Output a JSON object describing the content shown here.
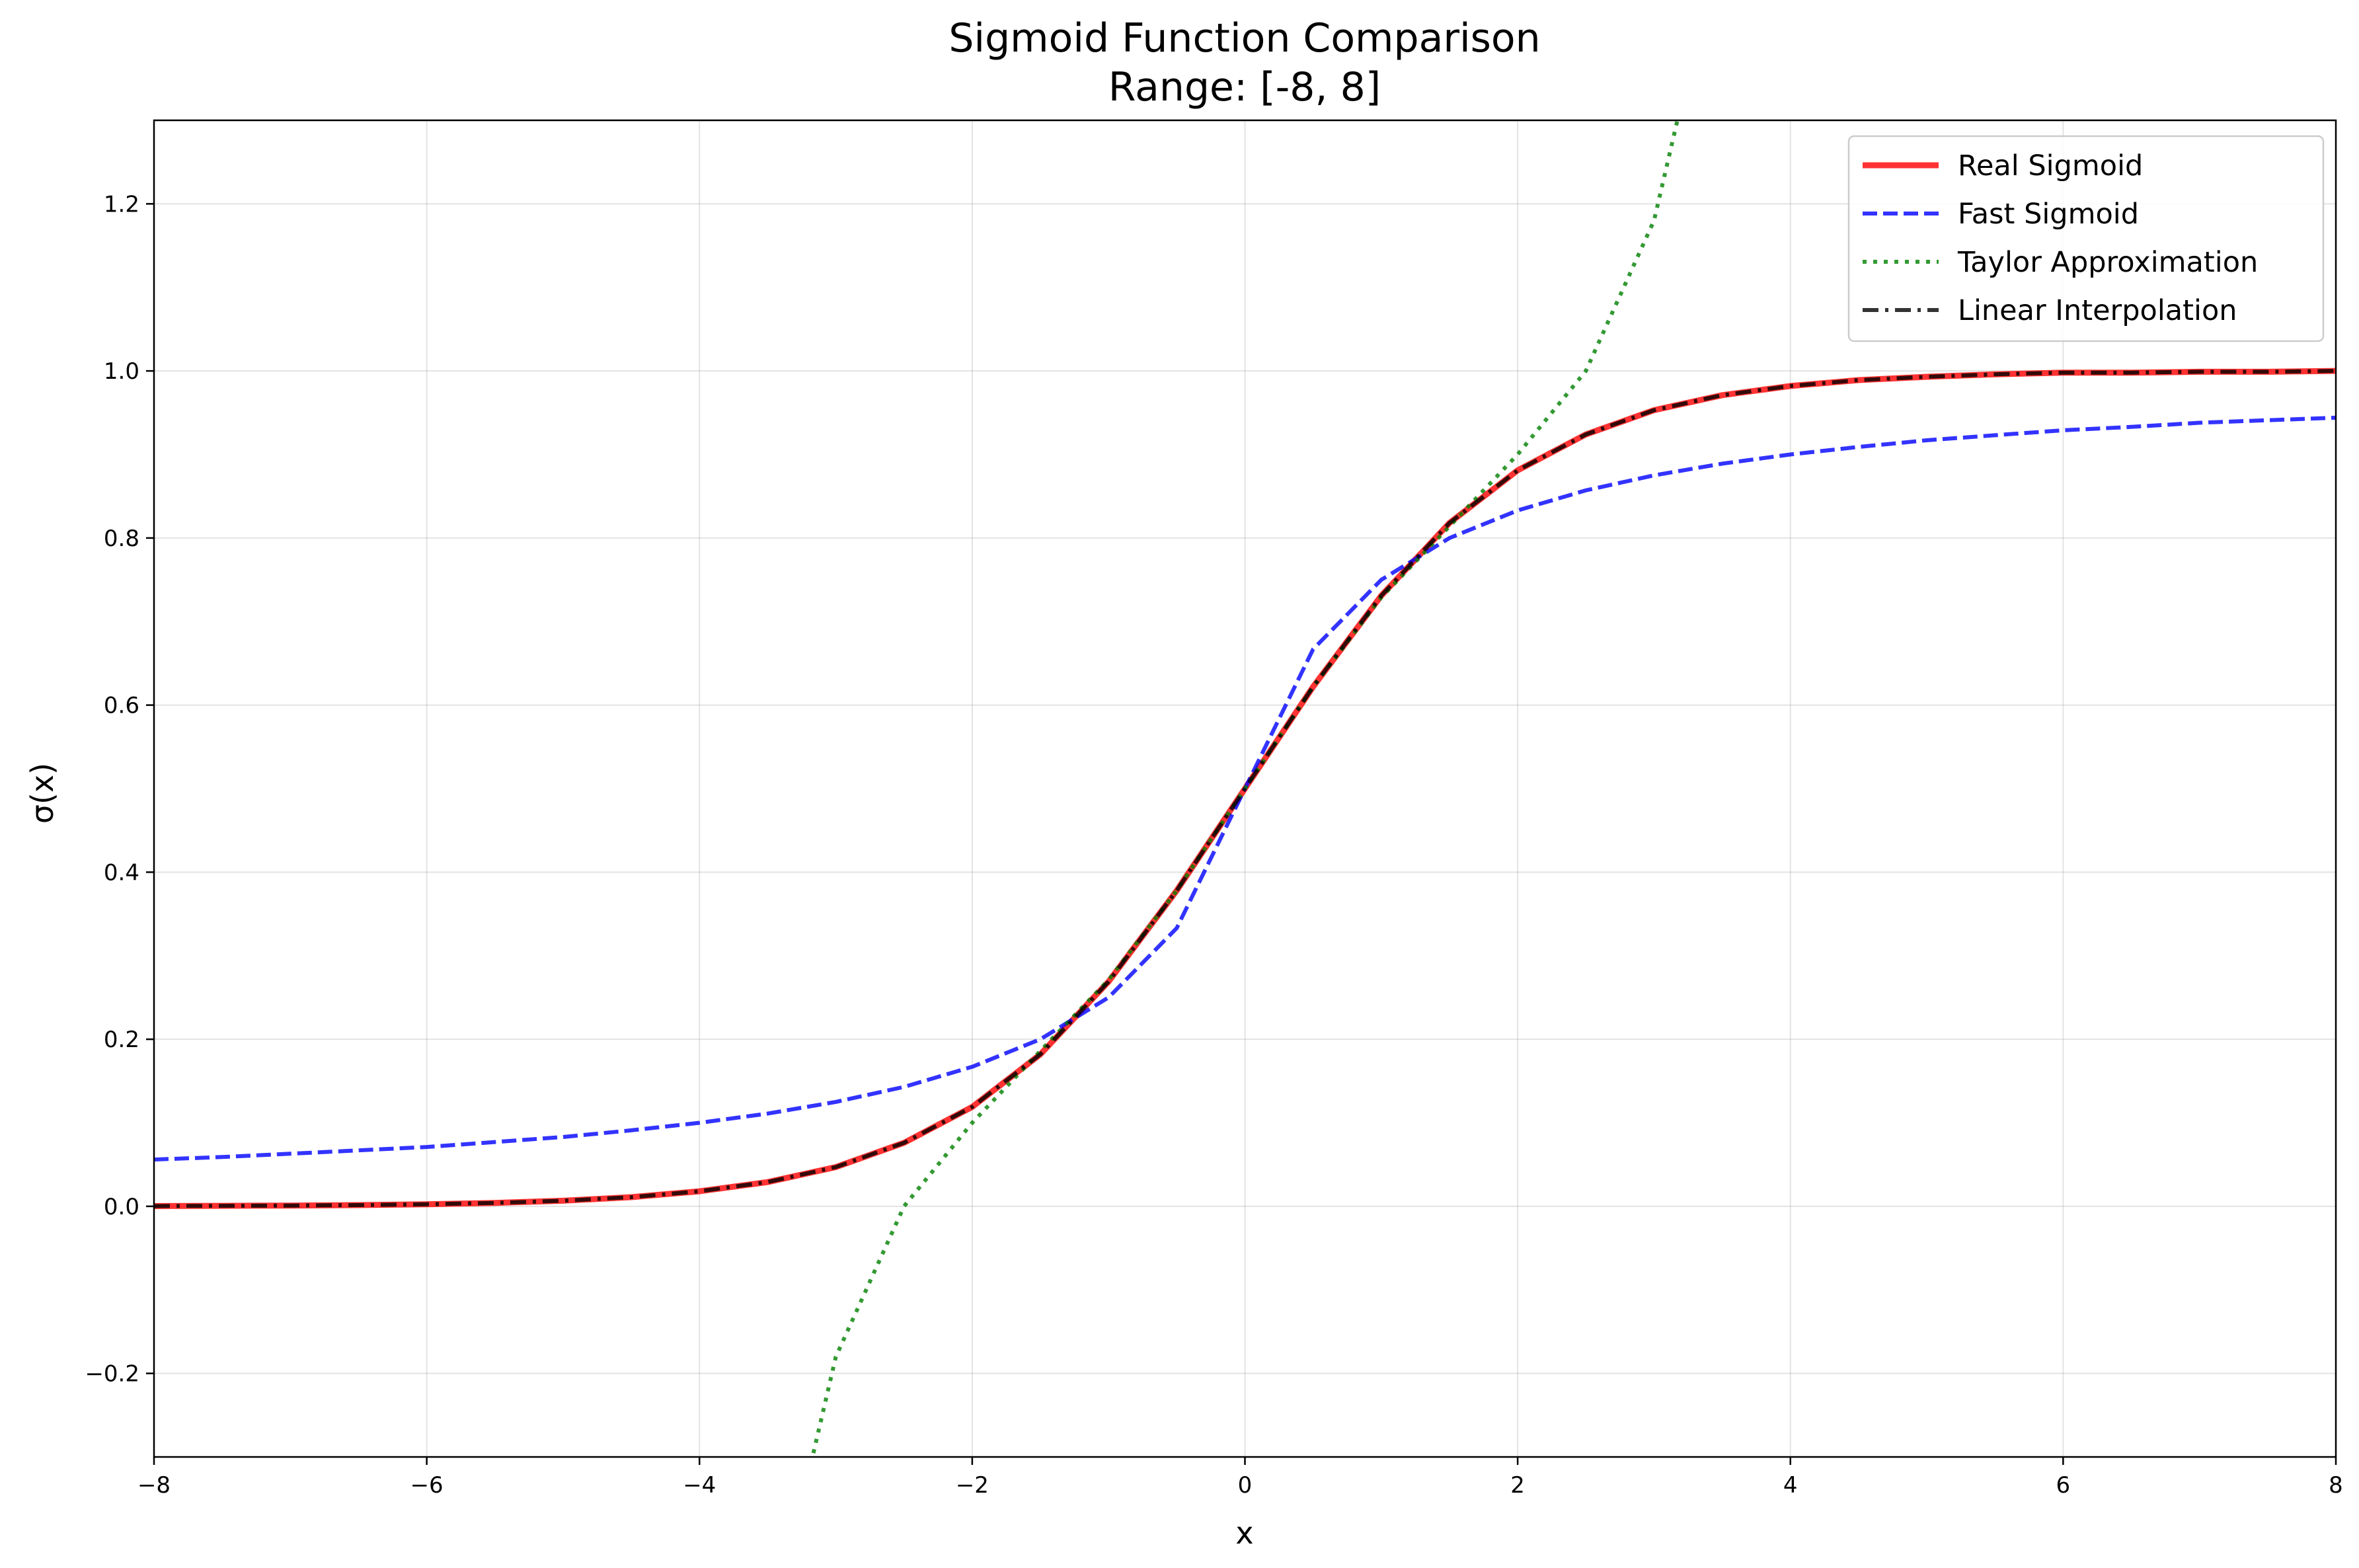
{
  "chart_data": {
    "type": "line",
    "title": "Sigmoid Function Comparison",
    "subtitle": "Range: [-8, 8]",
    "xlabel": "x",
    "ylabel": "σ(x)",
    "xlim": [
      -8,
      8
    ],
    "ylim": [
      -0.3,
      1.3
    ],
    "grid": true,
    "legend_position": "top-right",
    "x_ticks": [
      -8,
      -6,
      -4,
      -2,
      0,
      2,
      4,
      6,
      8
    ],
    "x_tick_labels": [
      "−8",
      "−6",
      "−4",
      "−2",
      "0",
      "2",
      "4",
      "6",
      "8"
    ],
    "y_ticks": [
      -0.2,
      0.0,
      0.2,
      0.4,
      0.6,
      0.8,
      1.0,
      1.2
    ],
    "y_tick_labels": [
      "−0.2",
      "0.0",
      "0.2",
      "0.4",
      "0.6",
      "0.8",
      "1.0",
      "1.2"
    ],
    "series": [
      {
        "name": "Real Sigmoid",
        "color": "#ff0000",
        "style": "solid",
        "x": [
          -8,
          -7.5,
          -7,
          -6.5,
          -6,
          -5.5,
          -5,
          -4.5,
          -4,
          -3.5,
          -3,
          -2.5,
          -2,
          -1.5,
          -1,
          -0.5,
          0,
          0.5,
          1,
          1.5,
          2,
          2.5,
          3,
          3.5,
          4,
          4.5,
          5,
          5.5,
          6,
          6.5,
          7,
          7.5,
          8
        ],
        "y": [
          0.0003,
          0.0006,
          0.0009,
          0.0015,
          0.0025,
          0.0041,
          0.0067,
          0.011,
          0.018,
          0.029,
          0.047,
          0.076,
          0.119,
          0.182,
          0.269,
          0.378,
          0.5,
          0.622,
          0.731,
          0.818,
          0.881,
          0.924,
          0.953,
          0.971,
          0.982,
          0.989,
          0.993,
          0.996,
          0.998,
          0.998,
          0.999,
          0.999,
          1.0
        ]
      },
      {
        "name": "Fast Sigmoid",
        "color": "#0000ff",
        "style": "dashed",
        "x": [
          -8,
          -7.5,
          -7,
          -6.5,
          -6,
          -5.5,
          -5,
          -4.5,
          -4,
          -3.5,
          -3,
          -2.5,
          -2,
          -1.5,
          -1,
          -0.5,
          0,
          0.5,
          1,
          1.5,
          2,
          2.5,
          3,
          3.5,
          4,
          4.5,
          5,
          5.5,
          6,
          6.5,
          7,
          7.5,
          8
        ],
        "y": [
          0.056,
          0.059,
          0.063,
          0.067,
          0.071,
          0.077,
          0.083,
          0.091,
          0.1,
          0.111,
          0.125,
          0.143,
          0.167,
          0.2,
          0.25,
          0.333,
          0.5,
          0.667,
          0.75,
          0.8,
          0.833,
          0.857,
          0.875,
          0.889,
          0.9,
          0.909,
          0.917,
          0.923,
          0.929,
          0.933,
          0.938,
          0.941,
          0.944
        ]
      },
      {
        "name": "Taylor Approximation",
        "color": "#008000",
        "style": "dotted",
        "x": [
          -3.2,
          -3.0,
          -2.5,
          -2.0,
          -1.5,
          -1.0,
          -0.5,
          0,
          0.5,
          1.0,
          1.5,
          2.0,
          2.5,
          3.0,
          3.2
        ],
        "y": [
          -0.32,
          -0.18,
          0.0,
          0.1,
          0.186,
          0.271,
          0.378,
          0.5,
          0.622,
          0.729,
          0.814,
          0.9,
          1.0,
          1.18,
          1.32
        ]
      },
      {
        "name": "Linear Interpolation",
        "color": "#000000",
        "style": "dashdot",
        "x": [
          -8,
          -7.5,
          -7,
          -6.5,
          -6,
          -5.5,
          -5,
          -4.5,
          -4,
          -3.5,
          -3,
          -2.5,
          -2,
          -1.5,
          -1,
          -0.5,
          0,
          0.5,
          1,
          1.5,
          2,
          2.5,
          3,
          3.5,
          4,
          4.5,
          5,
          5.5,
          6,
          6.5,
          7,
          7.5,
          8
        ],
        "y": [
          0.0003,
          0.0006,
          0.0009,
          0.0015,
          0.0025,
          0.0041,
          0.0067,
          0.011,
          0.018,
          0.029,
          0.047,
          0.076,
          0.119,
          0.182,
          0.269,
          0.378,
          0.5,
          0.622,
          0.731,
          0.818,
          0.881,
          0.924,
          0.953,
          0.971,
          0.982,
          0.989,
          0.993,
          0.996,
          0.998,
          0.998,
          0.999,
          0.999,
          1.0
        ]
      }
    ]
  }
}
